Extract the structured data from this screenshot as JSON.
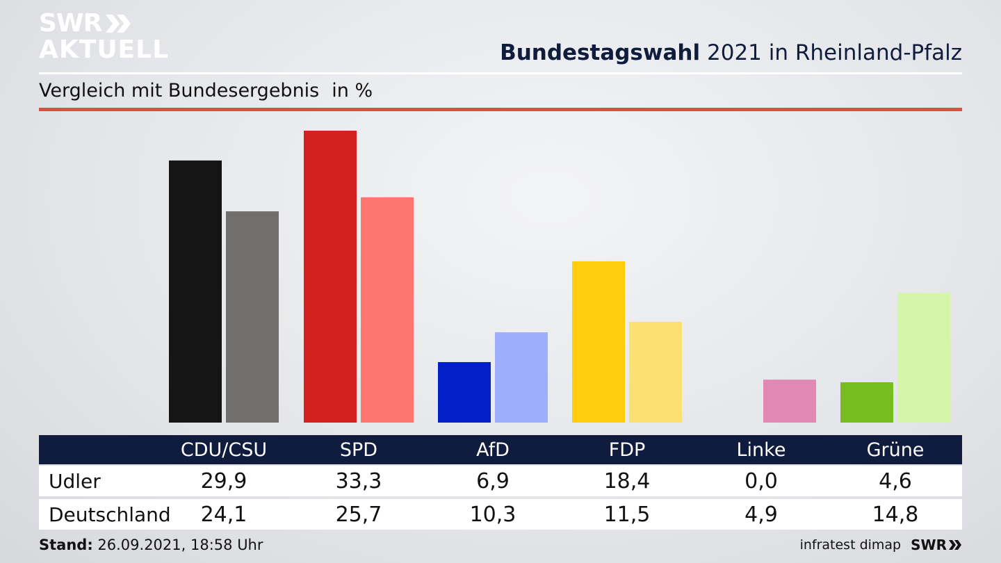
{
  "brand": {
    "logo_line1": "SWR",
    "logo_line2": "AKTUELL"
  },
  "header": {
    "title_bold": "Bundestagswahl",
    "title_rest": "2021 in Rheinland-Pfalz",
    "subtitle": "Vergleich mit Bundesergebnis",
    "unit": "in %"
  },
  "colors": {
    "navy": "#0f1c3d",
    "accent_red_line": "#d8523f",
    "CDU/CSU": [
      "#151515",
      "#706f6d"
    ],
    "SPD": [
      "#d52020",
      "#ff7570"
    ],
    "AfD": [
      "#0320c8",
      "#9fadff"
    ],
    "FDP": [
      "#ffcc0e",
      "#fde072"
    ],
    "Linke": [
      "#c0306e",
      "#e089b5"
    ],
    "Grüne": [
      "#77bd21",
      "#d5f5a8"
    ]
  },
  "chart_data": {
    "type": "bar",
    "categories": [
      "CDU/CSU",
      "SPD",
      "AfD",
      "FDP",
      "Linke",
      "Grüne"
    ],
    "series": [
      {
        "name": "Udler",
        "values": [
          29.9,
          33.3,
          6.9,
          18.4,
          0.0,
          4.6
        ]
      },
      {
        "name": "Deutschland",
        "values": [
          24.1,
          25.7,
          10.3,
          11.5,
          4.9,
          14.8
        ]
      }
    ],
    "value_labels": [
      [
        "29,9",
        "33,3",
        "6,9",
        "18,4",
        "0,0",
        "4,6"
      ],
      [
        "24,1",
        "25,7",
        "10,3",
        "11,5",
        "4,9",
        "14,8"
      ]
    ],
    "title": "Bundestagswahl 2021 in Rheinland-Pfalz",
    "subtitle": "Vergleich mit Bundesergebnis",
    "ylabel": "in %",
    "ylim": [
      0,
      33.3
    ],
    "grid": false,
    "legend": "table-below"
  },
  "footer": {
    "stand_label": "Stand:",
    "stand_value": "26.09.2021, 18:58 Uhr",
    "source": "infratest dimap",
    "brand": "SWR"
  }
}
